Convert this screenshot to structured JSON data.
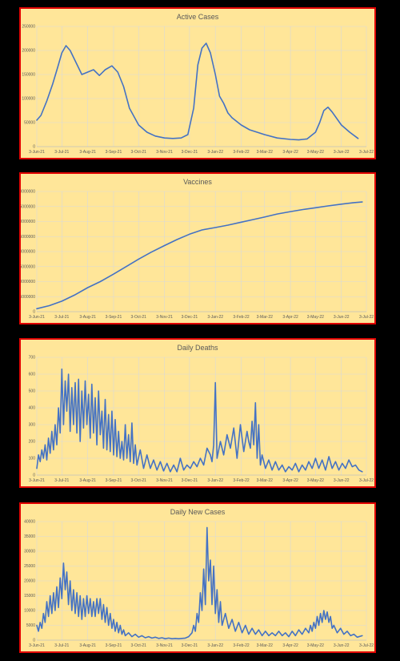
{
  "colors": {
    "page": "#000000",
    "panel_bg": "#FFE699",
    "panel_border": "#E00000",
    "line": "#4472C4",
    "grid": "#D9D9D9",
    "text": "#595959"
  },
  "x_ticks": [
    "3-Jun-21",
    "3-Jul-21",
    "3-Aug-21",
    "3-Sep-21",
    "3-Oct-21",
    "3-Nov-21",
    "3-Dec-21",
    "3-Jan-22",
    "3-Feb-22",
    "3-Mar-22",
    "3-Apr-22",
    "3-May-22",
    "3-Jun-22",
    "3-Jul-22"
  ],
  "chart_data": [
    {
      "id": "active",
      "type": "line",
      "title": "Active Cases",
      "ylim": [
        0,
        250000
      ],
      "y_ticks": [
        "0",
        "50000",
        "100000",
        "150000",
        "200000",
        "250000"
      ],
      "xlim": [
        "2021-06-03",
        "2022-07-03"
      ],
      "series": [
        {
          "x": [
            "2021-06-03",
            "2021-06-08",
            "2021-06-15",
            "2021-06-22",
            "2021-06-28",
            "2021-07-03",
            "2021-07-08",
            "2021-07-13",
            "2021-07-20",
            "2021-07-27",
            "2021-08-03",
            "2021-08-10",
            "2021-08-17",
            "2021-08-24",
            "2021-09-01",
            "2021-09-08",
            "2021-09-15",
            "2021-09-22",
            "2021-10-03",
            "2021-10-13",
            "2021-10-23",
            "2021-11-03",
            "2021-11-13",
            "2021-11-23",
            "2021-12-01",
            "2021-12-08",
            "2021-12-13",
            "2021-12-18",
            "2021-12-23",
            "2021-12-28",
            "2022-01-03",
            "2022-01-08",
            "2022-01-13",
            "2022-01-18",
            "2022-01-23",
            "2022-02-03",
            "2022-02-13",
            "2022-03-03",
            "2022-03-18",
            "2022-04-03",
            "2022-04-13",
            "2022-04-23",
            "2022-05-03",
            "2022-05-08",
            "2022-05-13",
            "2022-05-18",
            "2022-05-23",
            "2022-06-03",
            "2022-06-13",
            "2022-06-23"
          ],
          "y": [
            55000,
            65000,
            95000,
            130000,
            165000,
            195000,
            210000,
            200000,
            175000,
            150000,
            155000,
            160000,
            148000,
            160000,
            168000,
            155000,
            125000,
            80000,
            45000,
            30000,
            22000,
            18000,
            17000,
            18000,
            25000,
            80000,
            170000,
            205000,
            215000,
            195000,
            150000,
            105000,
            90000,
            70000,
            60000,
            45000,
            35000,
            25000,
            18000,
            15000,
            14000,
            16000,
            30000,
            50000,
            75000,
            82000,
            72000,
            45000,
            30000,
            17000
          ]
        }
      ]
    },
    {
      "id": "vaccines",
      "type": "line",
      "title": "Vaccines",
      "ylim": [
        0,
        40000000
      ],
      "y_ticks": [
        "0",
        "5000000",
        "10000000",
        "15000000",
        "20000000",
        "25000000",
        "30000000",
        "35000000",
        "40000000"
      ],
      "xlim": [
        "2021-06-03",
        "2022-07-03"
      ],
      "series": [
        {
          "x": [
            "2021-06-03",
            "2021-06-18",
            "2021-07-03",
            "2021-07-18",
            "2021-08-03",
            "2021-08-18",
            "2021-09-03",
            "2021-09-18",
            "2021-10-03",
            "2021-10-18",
            "2021-11-03",
            "2021-11-18",
            "2021-12-03",
            "2021-12-18",
            "2022-01-03",
            "2022-01-18",
            "2022-02-03",
            "2022-02-18",
            "2022-03-03",
            "2022-03-18",
            "2022-04-03",
            "2022-04-18",
            "2022-05-03",
            "2022-05-18",
            "2022-06-03",
            "2022-06-18",
            "2022-06-28"
          ],
          "y": [
            1000000,
            2000000,
            3500000,
            5500000,
            8000000,
            10000000,
            12500000,
            15000000,
            17500000,
            19800000,
            22000000,
            24000000,
            25800000,
            27200000,
            28000000,
            28800000,
            29800000,
            30700000,
            31500000,
            32500000,
            33300000,
            34000000,
            34600000,
            35200000,
            35800000,
            36300000,
            36500000
          ]
        }
      ]
    },
    {
      "id": "deaths",
      "type": "line",
      "title": "Daily Deaths",
      "ylim": [
        0,
        700
      ],
      "y_ticks": [
        "0",
        "100",
        "200",
        "300",
        "400",
        "500",
        "600",
        "700"
      ],
      "xlim": [
        "2021-06-03",
        "2022-07-03"
      ],
      "series": [
        {
          "x": [
            "2021-06-03",
            "2021-06-05",
            "2021-06-07",
            "2021-06-09",
            "2021-06-11",
            "2021-06-13",
            "2021-06-15",
            "2021-06-17",
            "2021-06-19",
            "2021-06-21",
            "2021-06-23",
            "2021-06-25",
            "2021-06-27",
            "2021-06-29",
            "2021-07-01",
            "2021-07-03",
            "2021-07-05",
            "2021-07-07",
            "2021-07-09",
            "2021-07-11",
            "2021-07-13",
            "2021-07-15",
            "2021-07-17",
            "2021-07-19",
            "2021-07-21",
            "2021-07-23",
            "2021-07-25",
            "2021-07-27",
            "2021-07-29",
            "2021-07-31",
            "2021-08-02",
            "2021-08-04",
            "2021-08-06",
            "2021-08-08",
            "2021-08-10",
            "2021-08-12",
            "2021-08-14",
            "2021-08-16",
            "2021-08-18",
            "2021-08-20",
            "2021-08-22",
            "2021-08-24",
            "2021-08-26",
            "2021-08-28",
            "2021-08-30",
            "2021-09-01",
            "2021-09-03",
            "2021-09-05",
            "2021-09-07",
            "2021-09-09",
            "2021-09-11",
            "2021-09-13",
            "2021-09-15",
            "2021-09-17",
            "2021-09-19",
            "2021-09-21",
            "2021-09-23",
            "2021-09-25",
            "2021-09-27",
            "2021-09-29",
            "2021-10-01",
            "2021-10-05",
            "2021-10-09",
            "2021-10-13",
            "2021-10-17",
            "2021-10-21",
            "2021-10-25",
            "2021-10-29",
            "2021-11-02",
            "2021-11-06",
            "2021-11-10",
            "2021-11-14",
            "2021-11-18",
            "2021-11-22",
            "2021-11-26",
            "2021-11-30",
            "2021-12-04",
            "2021-12-08",
            "2021-12-12",
            "2021-12-16",
            "2021-12-20",
            "2021-12-24",
            "2021-12-28",
            "2021-12-30",
            "2022-01-01",
            "2022-01-03",
            "2022-01-05",
            "2022-01-09",
            "2022-01-13",
            "2022-01-17",
            "2022-01-21",
            "2022-01-25",
            "2022-01-29",
            "2022-02-02",
            "2022-02-06",
            "2022-02-10",
            "2022-02-12",
            "2022-02-14",
            "2022-02-16",
            "2022-02-18",
            "2022-02-20",
            "2022-02-22",
            "2022-02-24",
            "2022-02-26",
            "2022-02-28",
            "2022-03-04",
            "2022-03-08",
            "2022-03-12",
            "2022-03-16",
            "2022-03-20",
            "2022-03-24",
            "2022-03-28",
            "2022-04-01",
            "2022-04-05",
            "2022-04-09",
            "2022-04-13",
            "2022-04-17",
            "2022-04-21",
            "2022-04-25",
            "2022-04-29",
            "2022-05-03",
            "2022-05-07",
            "2022-05-11",
            "2022-05-15",
            "2022-05-19",
            "2022-05-23",
            "2022-05-27",
            "2022-05-31",
            "2022-06-04",
            "2022-06-08",
            "2022-06-12",
            "2022-06-16",
            "2022-06-20",
            "2022-06-24",
            "2022-06-28"
          ],
          "y": [
            40,
            120,
            80,
            150,
            100,
            180,
            90,
            220,
            130,
            260,
            150,
            300,
            180,
            400,
            250,
            630,
            300,
            560,
            380,
            600,
            260,
            520,
            300,
            550,
            250,
            570,
            200,
            500,
            280,
            560,
            300,
            480,
            220,
            540,
            250,
            460,
            180,
            500,
            240,
            380,
            160,
            450,
            150,
            360,
            140,
            380,
            120,
            330,
            110,
            260,
            100,
            200,
            90,
            300,
            100,
            240,
            80,
            310,
            70,
            180,
            60,
            150,
            40,
            120,
            40,
            90,
            30,
            80,
            25,
            70,
            20,
            60,
            20,
            100,
            30,
            60,
            40,
            80,
            50,
            100,
            60,
            160,
            120,
            80,
            180,
            550,
            100,
            200,
            120,
            240,
            160,
            280,
            100,
            300,
            140,
            260,
            200,
            160,
            320,
            180,
            430,
            100,
            300,
            60,
            120,
            40,
            90,
            30,
            80,
            30,
            60,
            20,
            50,
            30,
            70,
            20,
            60,
            30,
            80,
            40,
            100,
            40,
            90,
            30,
            110,
            40,
            80,
            30,
            70,
            40,
            90,
            50,
            60,
            30,
            20
          ]
        }
      ]
    },
    {
      "id": "newcases",
      "type": "line",
      "title": "Daily New Cases",
      "ylim": [
        0,
        40000
      ],
      "y_ticks": [
        "0",
        "5000",
        "10000",
        "15000",
        "20000",
        "25000",
        "30000",
        "35000",
        "40000"
      ],
      "xlim": [
        "2021-06-03",
        "2022-07-03"
      ],
      "series": [
        {
          "x": [
            "2021-06-03",
            "2021-06-05",
            "2021-06-07",
            "2021-06-09",
            "2021-06-11",
            "2021-06-13",
            "2021-06-15",
            "2021-06-17",
            "2021-06-19",
            "2021-06-21",
            "2021-06-23",
            "2021-06-25",
            "2021-06-27",
            "2021-06-29",
            "2021-07-01",
            "2021-07-03",
            "2021-07-05",
            "2021-07-07",
            "2021-07-09",
            "2021-07-11",
            "2021-07-13",
            "2021-07-15",
            "2021-07-17",
            "2021-07-19",
            "2021-07-21",
            "2021-07-23",
            "2021-07-25",
            "2021-07-27",
            "2021-07-29",
            "2021-07-31",
            "2021-08-02",
            "2021-08-04",
            "2021-08-06",
            "2021-08-08",
            "2021-08-10",
            "2021-08-12",
            "2021-08-14",
            "2021-08-16",
            "2021-08-18",
            "2021-08-20",
            "2021-08-22",
            "2021-08-24",
            "2021-08-26",
            "2021-08-28",
            "2021-08-30",
            "2021-09-01",
            "2021-09-03",
            "2021-09-05",
            "2021-09-07",
            "2021-09-09",
            "2021-09-11",
            "2021-09-13",
            "2021-09-15",
            "2021-09-17",
            "2021-09-21",
            "2021-09-25",
            "2021-09-29",
            "2021-10-03",
            "2021-10-07",
            "2021-10-11",
            "2021-10-15",
            "2021-10-19",
            "2021-10-23",
            "2021-10-27",
            "2021-10-31",
            "2021-11-04",
            "2021-11-08",
            "2021-11-12",
            "2021-11-16",
            "2021-11-20",
            "2021-11-24",
            "2021-11-28",
            "2021-12-02",
            "2021-12-06",
            "2021-12-08",
            "2021-12-10",
            "2021-12-12",
            "2021-12-14",
            "2021-12-16",
            "2021-12-18",
            "2021-12-20",
            "2021-12-22",
            "2021-12-24",
            "2021-12-26",
            "2021-12-28",
            "2021-12-30",
            "2022-01-01",
            "2022-01-03",
            "2022-01-05",
            "2022-01-07",
            "2022-01-09",
            "2022-01-11",
            "2022-01-15",
            "2022-01-19",
            "2022-01-23",
            "2022-01-27",
            "2022-01-31",
            "2022-02-04",
            "2022-02-08",
            "2022-02-12",
            "2022-02-16",
            "2022-02-20",
            "2022-02-24",
            "2022-02-28",
            "2022-03-04",
            "2022-03-08",
            "2022-03-12",
            "2022-03-16",
            "2022-03-20",
            "2022-03-24",
            "2022-03-28",
            "2022-04-01",
            "2022-04-05",
            "2022-04-09",
            "2022-04-13",
            "2022-04-17",
            "2022-04-21",
            "2022-04-25",
            "2022-04-27",
            "2022-04-29",
            "2022-05-01",
            "2022-05-03",
            "2022-05-05",
            "2022-05-07",
            "2022-05-09",
            "2022-05-11",
            "2022-05-13",
            "2022-05-15",
            "2022-05-17",
            "2022-05-19",
            "2022-05-21",
            "2022-05-23",
            "2022-05-25",
            "2022-05-29",
            "2022-06-02",
            "2022-06-06",
            "2022-06-10",
            "2022-06-14",
            "2022-06-18",
            "2022-06-22",
            "2022-06-28"
          ],
          "y": [
            5000,
            3000,
            6000,
            4000,
            9000,
            6000,
            13000,
            8000,
            15000,
            9000,
            16000,
            10000,
            18000,
            11000,
            21000,
            14000,
            26000,
            17000,
            23000,
            12000,
            20000,
            10000,
            17000,
            9000,
            16000,
            8000,
            15000,
            7000,
            14000,
            8000,
            15000,
            9000,
            14000,
            8000,
            13000,
            8000,
            14000,
            9000,
            14000,
            7000,
            12000,
            6000,
            11000,
            5000,
            9000,
            4000,
            7000,
            3000,
            6000,
            2500,
            5000,
            2000,
            3500,
            1500,
            2500,
            1200,
            2000,
            1000,
            1500,
            800,
            1200,
            700,
            1000,
            600,
            800,
            500,
            700,
            500,
            600,
            500,
            600,
            700,
            1200,
            2500,
            5000,
            3000,
            9000,
            6000,
            16000,
            10000,
            24000,
            12000,
            38000,
            20000,
            27000,
            12000,
            25000,
            9000,
            17000,
            6000,
            13000,
            5000,
            9000,
            4000,
            7000,
            3000,
            6000,
            2500,
            5000,
            2000,
            4000,
            2000,
            3500,
            1500,
            3000,
            1500,
            2500,
            1500,
            3000,
            1500,
            2500,
            1200,
            3000,
            1500,
            3500,
            2000,
            4000,
            2500,
            5000,
            3000,
            6000,
            4000,
            8000,
            5000,
            9000,
            6000,
            10000,
            7000,
            9500,
            6000,
            8000,
            4000,
            5000,
            2500,
            4000,
            2000,
            3000,
            1500,
            2000,
            1000,
            1500
          ]
        }
      ]
    }
  ]
}
